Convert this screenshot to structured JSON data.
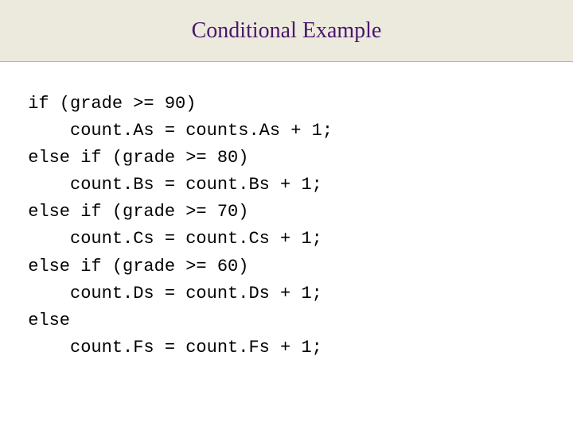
{
  "header": {
    "title": "Conditional Example"
  },
  "code": {
    "line1": " if (grade >= 90)",
    "line2": "     count.As = counts.As + 1;",
    "line3": " else if (grade >= 80)",
    "line4": "     count.Bs = count.Bs + 1;",
    "line5": " else if (grade >= 70)",
    "line6": "     count.Cs = count.Cs + 1;",
    "line7": " else if (grade >= 60)",
    "line8": "     count.Ds = count.Ds + 1;",
    "line9": " else",
    "line10": "     count.Fs = count.Fs + 1;"
  },
  "styling": {
    "slide_width": 720,
    "slide_height": 540,
    "header_background": "#eceadd",
    "header_border_color": "#b8b59e",
    "title_color": "#49166d",
    "title_fontsize": 28,
    "title_font": "Times New Roman",
    "code_font": "Courier New",
    "code_fontsize": 22,
    "code_color": "#000000",
    "code_line_height": 1.55,
    "background_color": "#ffffff"
  }
}
